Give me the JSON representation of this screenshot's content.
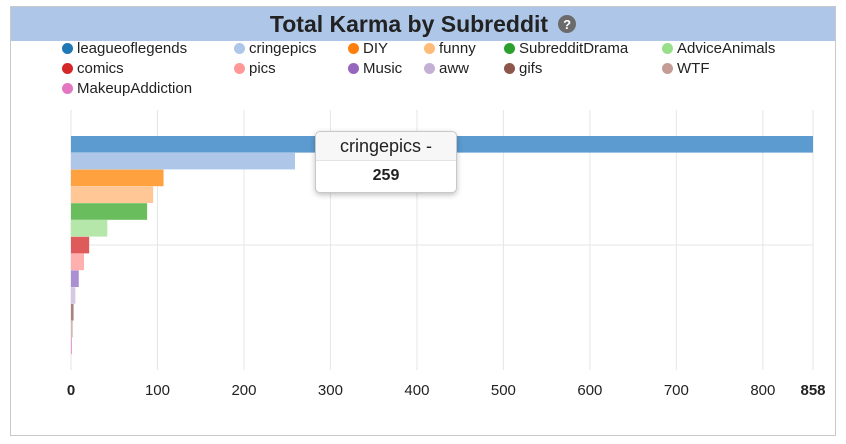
{
  "header": {
    "title": "Total Karma by Subreddit",
    "help_icon": "?"
  },
  "tooltip": {
    "label": "cringepics -",
    "value": "259"
  },
  "chart_data": {
    "type": "bar",
    "orientation": "horizontal",
    "title": "Total Karma by Subreddit",
    "categories": [
      "leagueoflegends",
      "cringepics",
      "DIY",
      "funny",
      "SubredditDrama",
      "AdviceAnimals",
      "comics",
      "pics",
      "Music",
      "aww",
      "gifs",
      "WTF",
      "MakeupAddiction"
    ],
    "values": [
      858,
      259,
      107,
      95,
      88,
      42,
      21,
      15,
      9,
      5,
      3,
      2,
      1
    ],
    "colors": [
      "#1f77b4",
      "#aec7e8",
      "#ff7f0e",
      "#ffbb78",
      "#2ca02c",
      "#98df8a",
      "#d62728",
      "#ff9896",
      "#9467bd",
      "#c5b0d5",
      "#8c564b",
      "#c49c94",
      "#e377c2"
    ],
    "bar_colors": [
      "#5b9bd0",
      "#aec7e8",
      "#ffa13f",
      "#ffc795",
      "#6abd5c",
      "#b6e7aa",
      "#df5b5b",
      "#ffafae",
      "#ab8fd3",
      "#d6c7e3",
      "#a98379",
      "#d4b6b0",
      "#ed9bd6"
    ],
    "xticks": [
      0,
      100,
      200,
      300,
      400,
      500,
      600,
      700,
      800
    ],
    "xmax_label": "858",
    "xlim": [
      0,
      858
    ],
    "grid": true,
    "legend_position": "top"
  }
}
